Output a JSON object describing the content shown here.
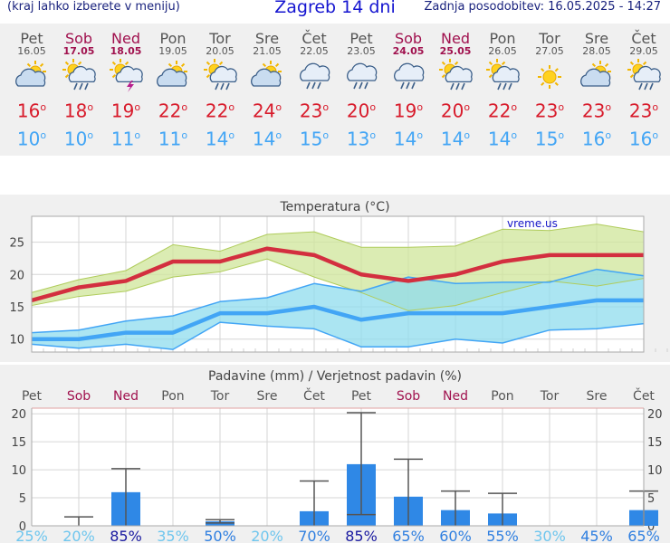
{
  "header": {
    "left": "(kraj lahko izberete v meniju)",
    "title": "Zagreb 14 dni",
    "right": "Zadnja posodobitev: 16.05.2025 - 14:27"
  },
  "days": [
    {
      "name": "Pet",
      "date": "16.05",
      "weekend": false,
      "icon": "partly-cloudy-icon",
      "tmax": "16",
      "tmin": "10"
    },
    {
      "name": "Sob",
      "date": "17.05",
      "weekend": true,
      "icon": "sun-cloud-rain-icon",
      "tmax": "18",
      "tmin": "10"
    },
    {
      "name": "Ned",
      "date": "18.05",
      "weekend": true,
      "icon": "sun-cloud-thunder-icon",
      "tmax": "19",
      "tmin": "11"
    },
    {
      "name": "Pon",
      "date": "19.05",
      "weekend": false,
      "icon": "partly-cloudy-icon",
      "tmax": "22",
      "tmin": "11"
    },
    {
      "name": "Tor",
      "date": "20.05",
      "weekend": false,
      "icon": "sun-cloud-rain-icon",
      "tmax": "22",
      "tmin": "14"
    },
    {
      "name": "Sre",
      "date": "21.05",
      "weekend": false,
      "icon": "partly-cloudy-icon",
      "tmax": "24",
      "tmin": "14"
    },
    {
      "name": "Čet",
      "date": "22.05",
      "weekend": false,
      "icon": "cloud-rain-icon",
      "tmax": "23",
      "tmin": "15"
    },
    {
      "name": "Pet",
      "date": "23.05",
      "weekend": false,
      "icon": "cloud-rain-icon",
      "tmax": "20",
      "tmin": "13"
    },
    {
      "name": "Sob",
      "date": "24.05",
      "weekend": true,
      "icon": "cloud-rain-icon",
      "tmax": "19",
      "tmin": "14"
    },
    {
      "name": "Ned",
      "date": "25.05",
      "weekend": true,
      "icon": "sun-cloud-rain-icon",
      "tmax": "20",
      "tmin": "14"
    },
    {
      "name": "Pon",
      "date": "26.05",
      "weekend": false,
      "icon": "sun-cloud-rain-icon",
      "tmax": "22",
      "tmin": "14"
    },
    {
      "name": "Tor",
      "date": "27.05",
      "weekend": false,
      "icon": "sun-icon",
      "tmax": "23",
      "tmin": "15"
    },
    {
      "name": "Sre",
      "date": "28.05",
      "weekend": false,
      "icon": "partly-cloudy-icon",
      "tmax": "23",
      "tmin": "16"
    },
    {
      "name": "Čet",
      "date": "29.05",
      "weekend": false,
      "icon": "sun-cloud-rain-icon",
      "tmax": "23",
      "tmin": "16"
    }
  ],
  "chart_data": [
    {
      "type": "line",
      "title": "Temperatura (°C)",
      "watermark": "vreme.us",
      "x": [
        "Pet",
        "Sob",
        "Ned",
        "Pon",
        "Tor",
        "Sre",
        "Čet",
        "Pet",
        "Sob",
        "Ned",
        "Pon",
        "Tor",
        "Sre",
        "Čet"
      ],
      "ylim": [
        8,
        29
      ],
      "yticks": [
        10,
        15,
        20,
        25
      ],
      "grid": true,
      "series": [
        {
          "values": [
            16,
            18,
            19,
            22,
            22,
            24,
            23,
            20,
            19,
            20,
            22,
            23,
            23,
            23
          ],
          "color": "#d32f3f"
        },
        {
          "values": [
            17.2,
            19.2,
            20.6,
            24.6,
            23.6,
            26.2,
            26.6,
            24.2,
            24.2,
            24.4,
            27,
            26.8,
            27.8,
            26.6
          ],
          "color": "#c8e07c"
        },
        {
          "values": [
            15.2,
            16.6,
            17.4,
            19.6,
            20.4,
            22.4,
            19.6,
            17.2,
            14.4,
            15.2,
            17.2,
            19,
            18.2,
            19.4
          ],
          "color": "#c8e07c"
        },
        {
          "values": [
            10,
            10,
            11,
            11,
            14,
            14,
            15,
            13,
            14,
            14,
            14,
            15,
            16,
            16
          ],
          "color": "#42a5f5"
        },
        {
          "values": [
            11,
            11.4,
            12.8,
            13.6,
            15.8,
            16.4,
            18.6,
            17.4,
            19.6,
            18.6,
            18.8,
            18.8,
            20.8,
            19.8
          ],
          "color": "#9fe0ef"
        },
        {
          "values": [
            9.2,
            8.6,
            9.2,
            8.4,
            12.6,
            12,
            11.6,
            8.8,
            8.8,
            10,
            9.4,
            11.4,
            11.6,
            12.4
          ],
          "color": "#9fe0ef"
        }
      ]
    },
    {
      "type": "bar",
      "title": "Padavine (mm) / Verjetnost padavin (%)",
      "categories": [
        "Pet",
        "Sob",
        "Ned",
        "Pon",
        "Tor",
        "Sre",
        "Čet",
        "Pet",
        "Sob",
        "Ned",
        "Pon",
        "Tor",
        "Sre",
        "Čet"
      ],
      "weekend": [
        false,
        true,
        true,
        false,
        false,
        false,
        false,
        false,
        true,
        true,
        false,
        false,
        false,
        false
      ],
      "values": [
        0,
        0,
        6,
        0,
        0.8,
        0,
        2.6,
        11,
        5.2,
        2.8,
        2.2,
        0,
        0,
        2.8
      ],
      "err_low": [
        0,
        0,
        0,
        0,
        0.5,
        0,
        0,
        2,
        0,
        0,
        0,
        0,
        0,
        0
      ],
      "err_high": [
        0,
        1.6,
        10.2,
        0,
        1.1,
        0,
        8,
        20.2,
        11.9,
        6.2,
        5.8,
        0,
        0,
        6.2
      ],
      "probability": [
        "25%",
        "20%",
        "85%",
        "35%",
        "50%",
        "20%",
        "70%",
        "85%",
        "65%",
        "60%",
        "55%",
        "30%",
        "45%",
        "65%"
      ],
      "prob_values": [
        25,
        20,
        85,
        35,
        50,
        20,
        70,
        85,
        65,
        60,
        55,
        30,
        45,
        65
      ],
      "ylim": [
        0,
        21
      ],
      "yticks": [
        0,
        5,
        10,
        15,
        20
      ],
      "grid": true,
      "colors": {
        "bar": "#2f88e6",
        "whisker": "#555555"
      }
    }
  ]
}
